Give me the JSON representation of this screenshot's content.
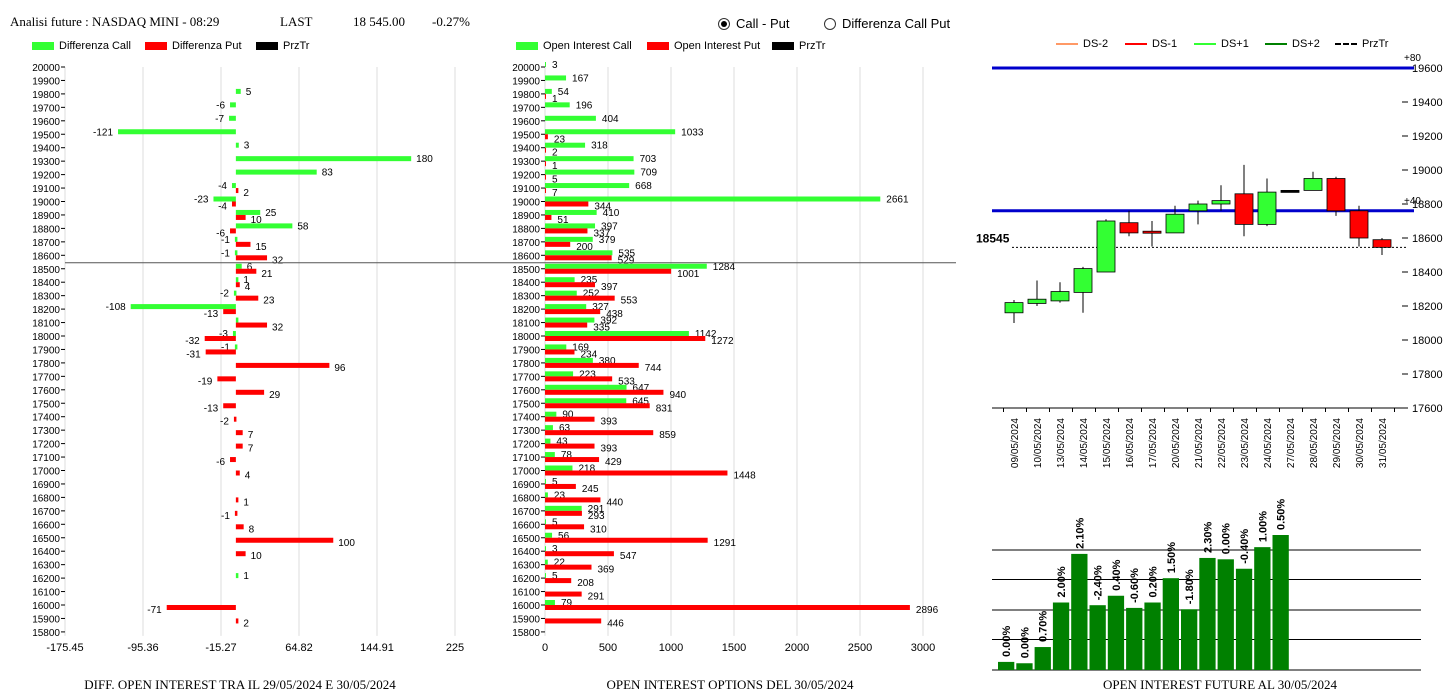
{
  "header": {
    "title": "Analisi future : NASDAQ MINI - 08:29",
    "last_label": "LAST",
    "last_value": "18 545.00",
    "change": "-0.27%"
  },
  "radio": {
    "options": [
      {
        "label": "Call - Put",
        "selected": true
      },
      {
        "label": "Differenza Call Put",
        "selected": false
      }
    ]
  },
  "legend_diff": [
    {
      "label": "Differenza Call",
      "color": "#33ff33"
    },
    {
      "label": "Differenza Put",
      "color": "#ff0000"
    },
    {
      "label": "PrzTr",
      "color": "#000000"
    }
  ],
  "legend_oi": [
    {
      "label": "Open Interest Call",
      "color": "#33ff33"
    },
    {
      "label": "Open Interest Put",
      "color": "#ff0000"
    },
    {
      "label": "PrzTr",
      "color": "#000000"
    }
  ],
  "legend_cs": [
    {
      "label": "DS-2",
      "color": "#ff9966",
      "style": "solid"
    },
    {
      "label": "DS-1",
      "color": "#ff0000",
      "style": "solid"
    },
    {
      "label": "DS+1",
      "color": "#33ff33",
      "style": "solid"
    },
    {
      "label": "DS+2",
      "color": "#008000",
      "style": "solid"
    },
    {
      "label": "PrzTr",
      "color": "#000000",
      "style": "dashed"
    }
  ],
  "titles": {
    "diff": "DIFF. OPEN INTEREST TRA IL 29/05/2024 E 30/05/2024",
    "oi": "OPEN INTEREST OPTIONS DEL 30/05/2024",
    "future": "OPEN INTEREST FUTURE AL 30/05/2024"
  },
  "chart_data": [
    {
      "type": "bar",
      "orientation": "horizontal",
      "name": "diff",
      "strikes": [
        20000,
        19900,
        19800,
        19700,
        19600,
        19500,
        19400,
        19300,
        19200,
        19100,
        19000,
        18900,
        18800,
        18700,
        18600,
        18500,
        18400,
        18300,
        18200,
        18100,
        18000,
        17900,
        17800,
        17700,
        17600,
        17500,
        17400,
        17300,
        17200,
        17100,
        17000,
        16900,
        16800,
        16700,
        16600,
        16500,
        16400,
        16300,
        16200,
        16100,
        16000,
        15900,
        15800
      ],
      "call_diff": {
        "19800": 5,
        "19700": -6,
        "19600": -7,
        "19500": -121,
        "19400": 3,
        "19300": 180,
        "19200": 83,
        "19100": -4,
        "19000": -23,
        "18900": 25,
        "18800": 58,
        "18700": -1,
        "18600": -1,
        "18500": 6,
        "18400": 1,
        "18300": -2,
        "18200": -108,
        "18100": 0,
        "18000": -3,
        "17900": -1,
        "16200": 1
      },
      "put_diff": {
        "19100": 2,
        "19000": -4,
        "18900": 10,
        "18800": -6,
        "18700": 15,
        "18600": 32,
        "18500": 21,
        "18400": 4,
        "18300": 23,
        "18200": -13,
        "18100": 32,
        "18000": -32,
        "17900": -31,
        "17800": 96,
        "17700": -19,
        "17600": 29,
        "17500": -13,
        "17400": -2,
        "17300": 7,
        "17200": 7,
        "17100": -6,
        "17000": 4,
        "16800": 1,
        "16700": -1,
        "16600": 8,
        "16500": 100,
        "16400": 10,
        "16000": -71,
        "15900": 2
      },
      "xticks": [
        "-175.45",
        "-95.36",
        "-15.27",
        "64.82",
        "144.91",
        "225"
      ],
      "xlim": [
        -175.45,
        225
      ],
      "price_line": 18545
    },
    {
      "type": "bar",
      "orientation": "horizontal",
      "name": "open_interest",
      "call": {
        "20000": 3,
        "19900": 167,
        "19800": 54,
        "19700": 196,
        "19600": 404,
        "19500": 1033,
        "19400": 318,
        "19300": 703,
        "19200": 709,
        "19100": 668,
        "19000": 2661,
        "18900": 410,
        "18800": 397,
        "18700": 379,
        "18600": 535,
        "18500": 1284,
        "18400": 235,
        "18300": 252,
        "18200": 327,
        "18100": 392,
        "18000": 1142,
        "17900": 169,
        "17800": 380,
        "17700": 223,
        "17600": 647,
        "17500": 645,
        "17400": 90,
        "17300": 63,
        "17200": 43,
        "17100": 78,
        "17000": 218,
        "16900": 5,
        "16800": 23,
        "16700": 291,
        "16600": 5,
        "16500": 56,
        "16400": 3,
        "16300": 22,
        "16200": 5,
        "16000": 79
      },
      "put": {
        "19800": 1,
        "19500": 23,
        "19400": 2,
        "19300": 1,
        "19200": 5,
        "19100": 7,
        "19000": 344,
        "18900": 51,
        "18800": 337,
        "18700": 200,
        "18600": 529,
        "18500": 1001,
        "18400": 397,
        "18300": 553,
        "18200": 438,
        "18100": 335,
        "18000": 1272,
        "17900": 234,
        "17800": 744,
        "17700": 533,
        "17600": 940,
        "17500": 831,
        "17400": 393,
        "17300": 859,
        "17200": 393,
        "17100": 429,
        "17000": 1448,
        "16900": 245,
        "16800": 440,
        "16700": 293,
        "16600": 310,
        "16500": 1291,
        "16400": 547,
        "16300": 369,
        "16200": 208,
        "16100": 291,
        "16000": 2896,
        "15900": 446
      },
      "xticks": [
        "0",
        "500",
        "1000",
        "1500",
        "2000",
        "2500",
        "3000"
      ],
      "xlim": [
        0,
        3000
      ],
      "price_line": 18545
    },
    {
      "type": "candlestick",
      "name": "future_price",
      "dates": [
        "09/05/2024",
        "10/05/2024",
        "13/05/2024",
        "14/05/2024",
        "15/05/2024",
        "16/05/2024",
        "17/05/2024",
        "20/05/2024",
        "21/05/2024",
        "22/05/2024",
        "23/05/2024",
        "24/05/2024",
        "27/05/2024",
        "28/05/2024",
        "29/05/2024",
        "30/05/2024",
        "31/05/2024"
      ],
      "candles": [
        {
          "o": 18160,
          "c": 18220,
          "h": 18235,
          "l": 18100
        },
        {
          "o": 18215,
          "c": 18240,
          "h": 18350,
          "l": 18200
        },
        {
          "o": 18230,
          "c": 18285,
          "h": 18340,
          "l": 18220
        },
        {
          "o": 18280,
          "c": 18420,
          "h": 18430,
          "l": 18160
        },
        {
          "o": 18400,
          "c": 18700,
          "h": 18710,
          "l": 18400
        },
        {
          "o": 18690,
          "c": 18630,
          "h": 18760,
          "l": 18610
        },
        {
          "o": 18640,
          "c": 18630,
          "h": 18700,
          "l": 18550
        },
        {
          "o": 18630,
          "c": 18740,
          "h": 18790,
          "l": 18630
        },
        {
          "o": 18760,
          "c": 18800,
          "h": 18820,
          "l": 18680
        },
        {
          "o": 18800,
          "c": 18820,
          "h": 18910,
          "l": 18760
        },
        {
          "o": 18860,
          "c": 18680,
          "h": 19030,
          "l": 18610
        },
        {
          "o": 18680,
          "c": 18870,
          "h": 18950,
          "l": 18670
        },
        {
          "o": 18880,
          "c": 18880,
          "h": 18880,
          "l": 18880
        },
        {
          "o": 18880,
          "c": 18950,
          "h": 18990,
          "l": 18880
        },
        {
          "o": 18950,
          "c": 18760,
          "h": 18960,
          "l": 18730
        },
        {
          "o": 18760,
          "c": 18600,
          "h": 18790,
          "l": 18550
        },
        {
          "o": 18590,
          "c": 18545,
          "h": 18600,
          "l": 18500
        }
      ],
      "yticks": [
        "17600",
        "17800",
        "18000",
        "18200",
        "18400",
        "18600",
        "18800",
        "19000",
        "19200",
        "19400",
        "19600"
      ],
      "ylim": [
        17600,
        19600
      ],
      "bands": [
        {
          "value": 19600,
          "label": "+80"
        },
        {
          "value": 18760,
          "label": "+40"
        }
      ],
      "price_line": 18545,
      "price_label": "18545"
    },
    {
      "type": "bar",
      "name": "future_oi_change",
      "labels": [
        "0.00%",
        "0.00%",
        "0.70%",
        "2.00%",
        "2.10%",
        "-2.40%",
        "0.40%",
        "-0.60%",
        "0.20%",
        "1.50%",
        "-1.80%",
        "2.30%",
        "0.00%",
        "-0.40%",
        "1.00%",
        "0.50%"
      ],
      "heights": [
        0.06,
        0.05,
        0.17,
        0.5,
        0.86,
        0.48,
        0.55,
        0.46,
        0.5,
        0.68,
        0.45,
        0.83,
        0.82,
        0.75,
        0.91,
        1.0
      ]
    }
  ]
}
